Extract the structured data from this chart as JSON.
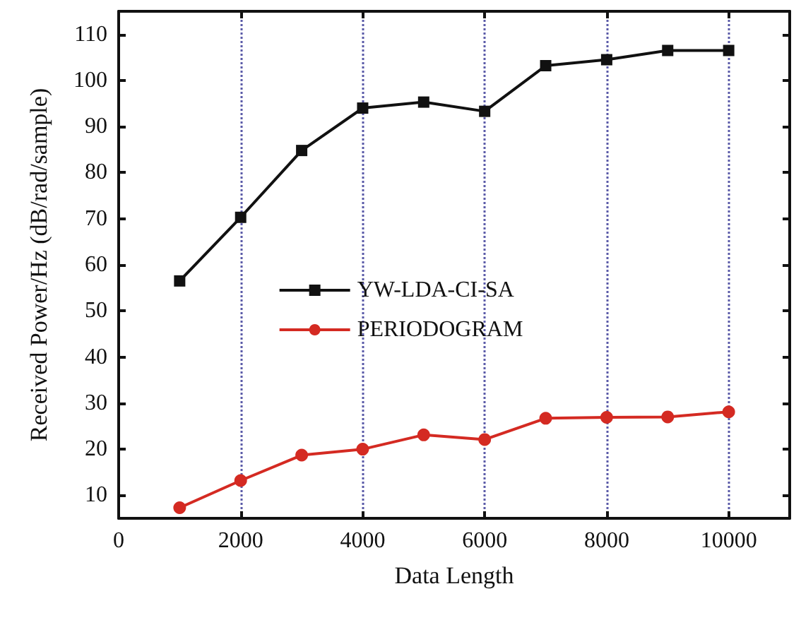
{
  "chart_data": {
    "type": "line",
    "xlabel": "Data Length",
    "ylabel": "Received Power/Hz (dB/rad/sample)",
    "x": [
      1000,
      2000,
      3000,
      4000,
      5000,
      6000,
      7000,
      8000,
      9000,
      10000
    ],
    "series": [
      {
        "name": "YW-LDA-CI-SA",
        "color": "#111111",
        "marker": "square",
        "values": [
          56.5,
          70.3,
          84.8,
          94,
          95.3,
          93.3,
          103.2,
          104.5,
          106.5,
          106.5
        ]
      },
      {
        "name": "PERIODOGRAM",
        "color": "#d42a22",
        "marker": "circle",
        "values": [
          7.3,
          13.2,
          18.7,
          20,
          23.1,
          22.1,
          26.7,
          26.9,
          27,
          28.1
        ]
      }
    ],
    "xlim": [
      0,
      11000
    ],
    "xticks": [
      0,
      2000,
      4000,
      6000,
      8000,
      10000
    ],
    "ylim": [
      5,
      115
    ],
    "yticks": [
      10,
      20,
      30,
      40,
      50,
      60,
      70,
      80,
      90,
      100,
      110
    ],
    "grid": "x",
    "legend": "center",
    "line_style": "solid"
  }
}
